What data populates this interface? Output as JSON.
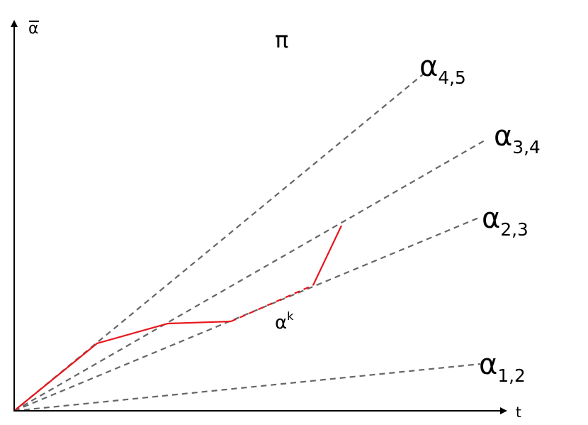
{
  "axes": {
    "y_label": "α",
    "x_label": "t"
  },
  "title": "π",
  "lines": [
    {
      "id": "a45",
      "symbol": "α",
      "sub": "4,5"
    },
    {
      "id": "a34",
      "symbol": "α",
      "sub": "3,4"
    },
    {
      "id": "a23",
      "symbol": "α",
      "sub": "2,3"
    },
    {
      "id": "a12",
      "symbol": "α",
      "sub": "1,2"
    }
  ],
  "path_label": {
    "symbol": "α",
    "sup": "k"
  },
  "colors": {
    "axis": "#000000",
    "dashed_lines": "#666666",
    "path": "#e8161c"
  }
}
